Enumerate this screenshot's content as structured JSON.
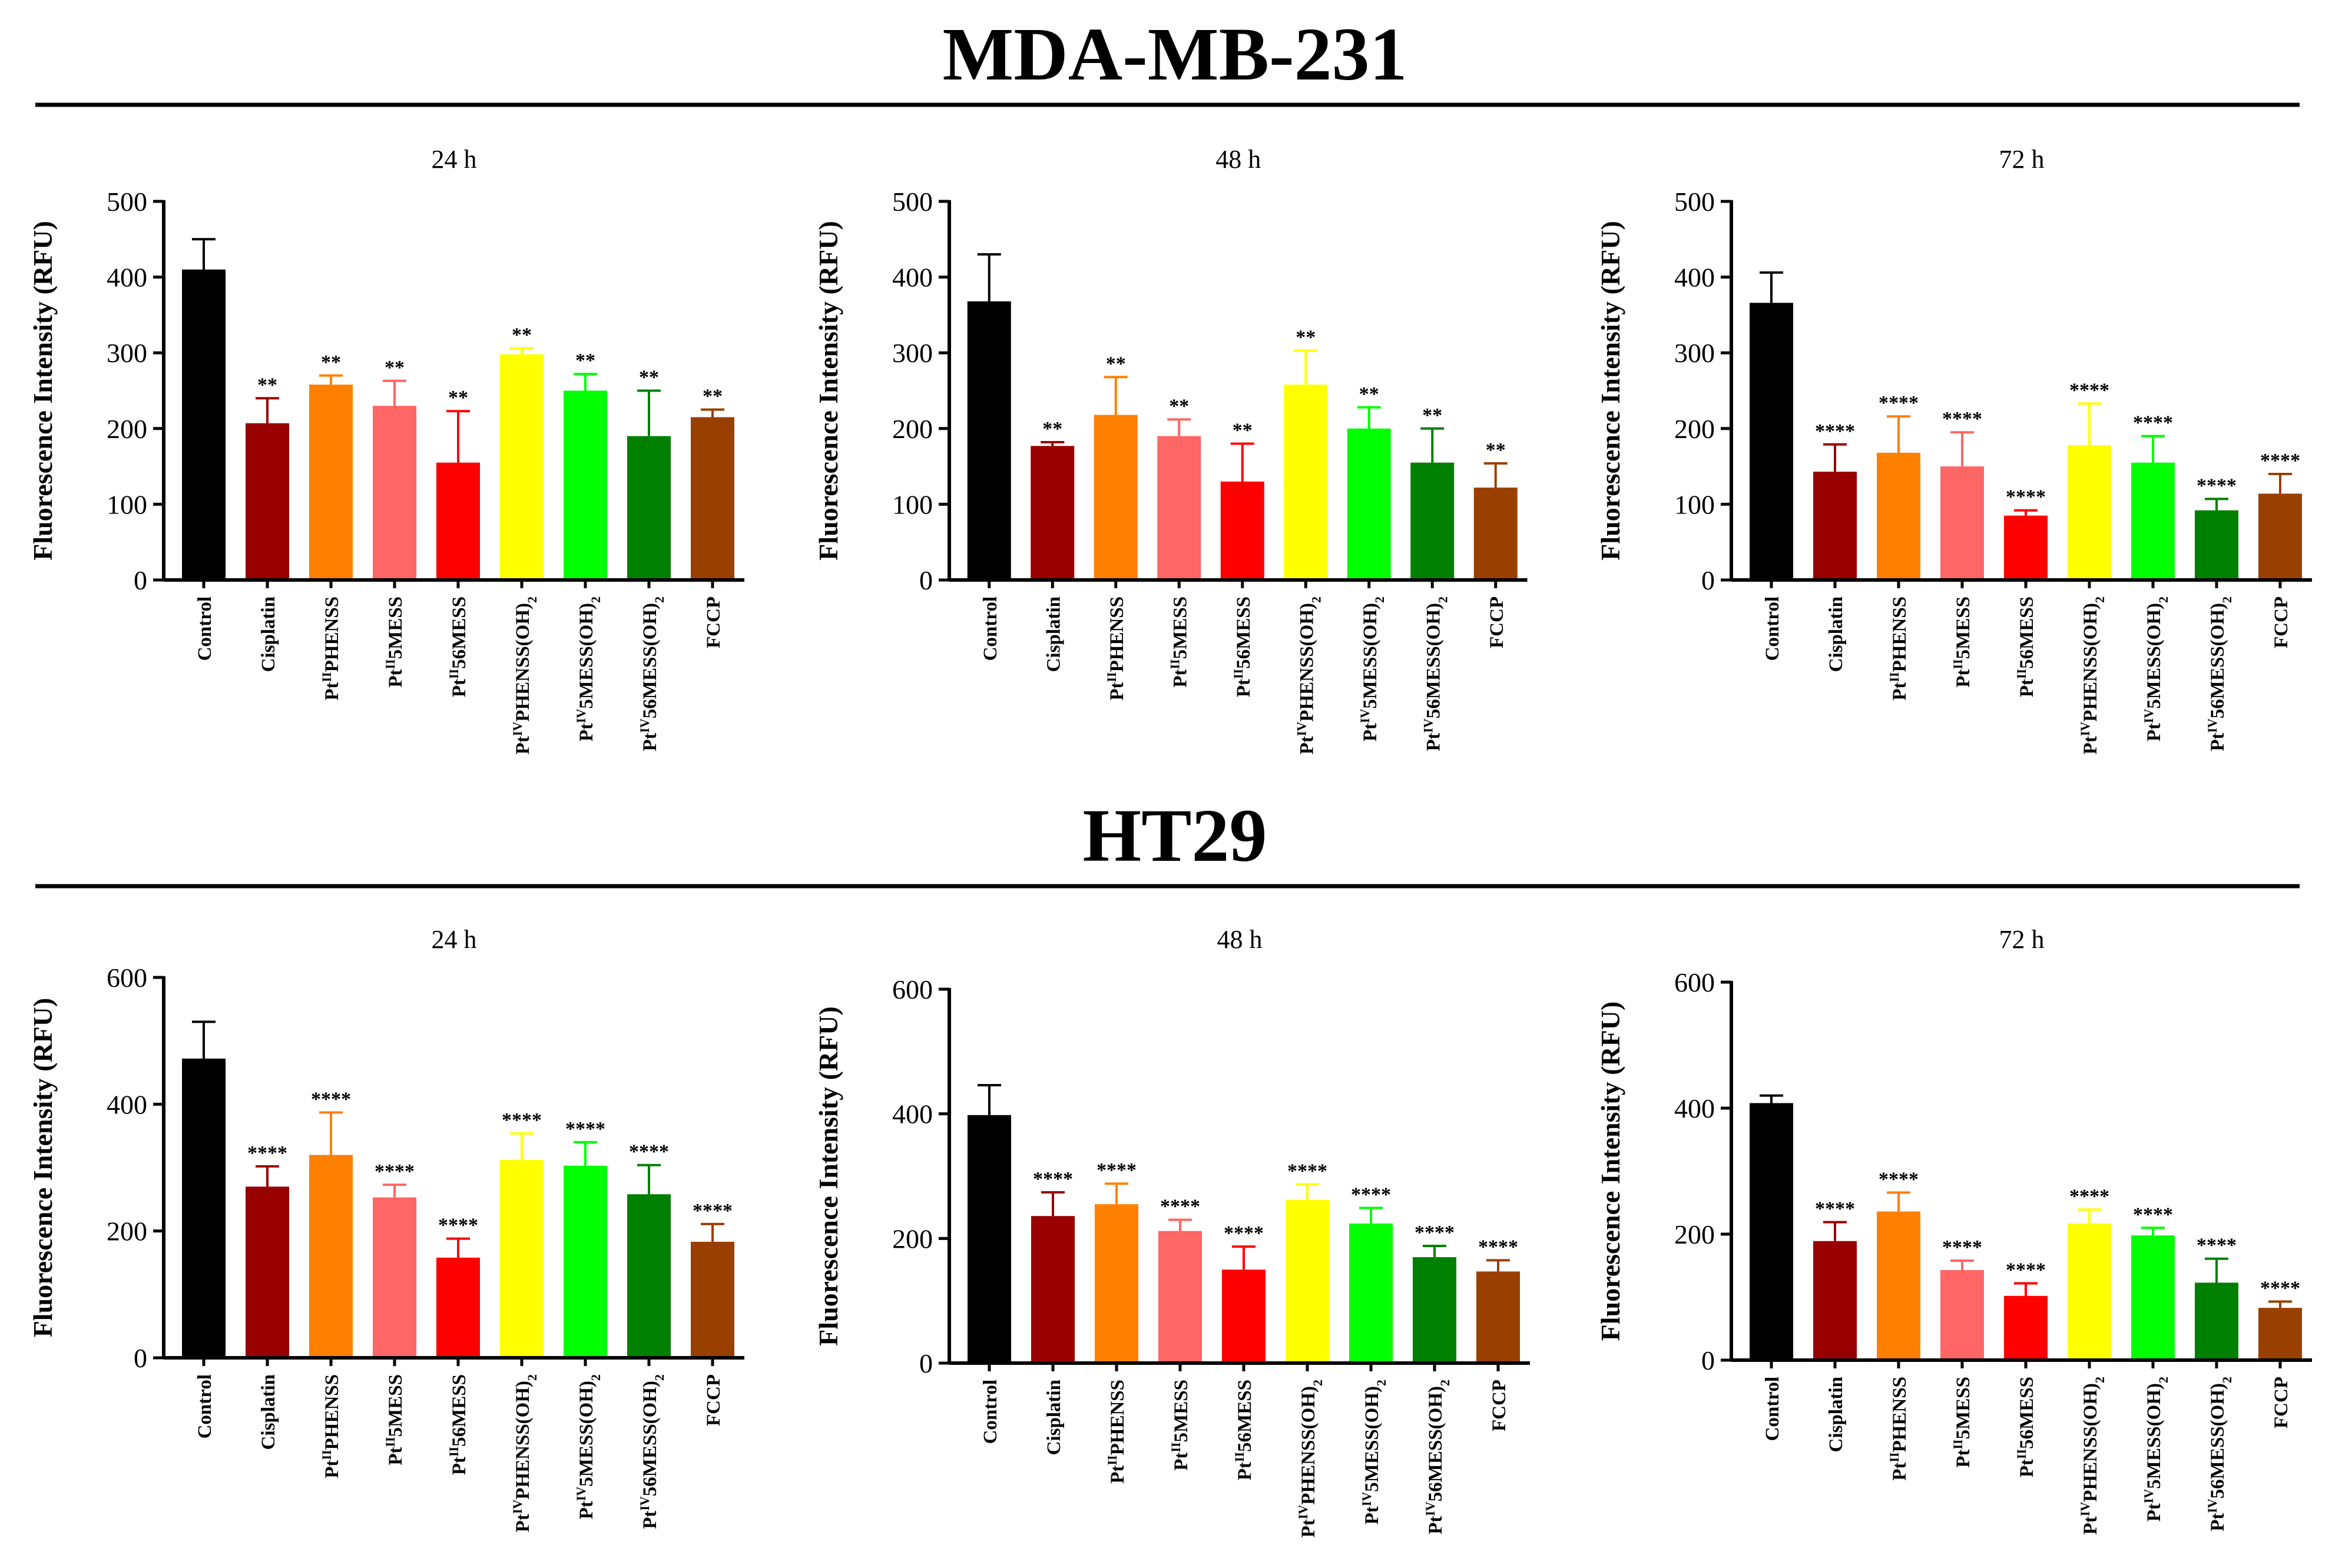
{
  "figure": {
    "sections": [
      {
        "title": "MDA-MB-231"
      },
      {
        "title": "HT29"
      }
    ]
  },
  "categories": [
    {
      "base": "Control"
    },
    {
      "base": "Cisplatin"
    },
    {
      "pre": "Pt",
      "sup": "II",
      "post": "PHENSS"
    },
    {
      "pre": "Pt",
      "sup": "II",
      "post": "5MESS"
    },
    {
      "pre": "Pt",
      "sup": "II",
      "post": "56MESS"
    },
    {
      "pre": "Pt",
      "sup": "IV",
      "post": "PHENSS(OH)",
      "sub": "2"
    },
    {
      "pre": "Pt",
      "sup": "IV",
      "post": "5MESS(OH)",
      "sub": "2"
    },
    {
      "pre": "Pt",
      "sup": "IV",
      "post": "56MESS(OH)",
      "sub": "2"
    },
    {
      "base": "FCCP"
    }
  ],
  "colors": [
    "#000000",
    "#990000",
    "#ff8000",
    "#ff6666",
    "#ff0000",
    "#ffff00",
    "#00ff00",
    "#008000",
    "#994000"
  ],
  "chart_data": [
    {
      "type": "bar",
      "section": "MDA-MB-231",
      "title": "24 h",
      "ylabel": "Fluorescence Intensity (RFU)",
      "ylim": [
        0,
        500
      ],
      "yticks": [
        0,
        100,
        200,
        300,
        400,
        500
      ],
      "values": [
        410,
        207,
        258,
        230,
        155,
        298,
        250,
        190,
        215
      ],
      "errors": [
        40,
        33,
        12,
        33,
        68,
        8,
        22,
        60,
        10
      ],
      "significance": [
        "",
        "**",
        "**",
        "**",
        "**",
        "**",
        "**",
        "**",
        "**"
      ]
    },
    {
      "type": "bar",
      "section": "MDA-MB-231",
      "title": "48 h",
      "ylabel": "Fluorescence Intensity (RFU)",
      "ylim": [
        0,
        500
      ],
      "yticks": [
        0,
        100,
        200,
        300,
        400,
        500
      ],
      "values": [
        368,
        177,
        218,
        190,
        130,
        258,
        200,
        155,
        122
      ],
      "errors": [
        62,
        5,
        50,
        22,
        50,
        45,
        28,
        45,
        32
      ],
      "significance": [
        "",
        "**",
        "**",
        "**",
        "**",
        "**",
        "**",
        "**",
        "**"
      ]
    },
    {
      "type": "bar",
      "section": "MDA-MB-231",
      "title": "72 h",
      "ylabel": "Fluorescence Intensity (RFU)",
      "ylim": [
        0,
        500
      ],
      "yticks": [
        0,
        100,
        200,
        300,
        400,
        500
      ],
      "values": [
        366,
        143,
        168,
        150,
        85,
        178,
        155,
        92,
        114
      ],
      "errors": [
        40,
        36,
        48,
        45,
        7,
        55,
        35,
        15,
        26
      ],
      "significance": [
        "",
        "****",
        "****",
        "****",
        "****",
        "****",
        "****",
        "****",
        "****"
      ]
    },
    {
      "type": "bar",
      "section": "HT29",
      "title": "24 h",
      "ylabel": "Fluorescence Intensity (RFU)",
      "ylim": [
        0,
        600
      ],
      "yticks": [
        0,
        200,
        400,
        600
      ],
      "values": [
        472,
        270,
        320,
        253,
        158,
        312,
        303,
        258,
        183
      ],
      "errors": [
        58,
        32,
        67,
        20,
        30,
        42,
        37,
        46,
        28
      ],
      "significance": [
        "",
        "****",
        "****",
        "****",
        "****",
        "****",
        "****",
        "****",
        "****"
      ]
    },
    {
      "type": "bar",
      "section": "HT29",
      "title": "48 h",
      "ylabel": "Fluorescence Intensity (RFU)",
      "ylim": [
        0,
        600
      ],
      "yticks": [
        0,
        200,
        400,
        600
      ],
      "values": [
        398,
        236,
        255,
        212,
        150,
        262,
        224,
        170,
        147
      ],
      "errors": [
        48,
        38,
        33,
        18,
        37,
        25,
        25,
        18,
        18
      ],
      "significance": [
        "",
        "****",
        "****",
        "****",
        "****",
        "****",
        "****",
        "****",
        "****"
      ]
    },
    {
      "type": "bar",
      "section": "HT29",
      "title": "72 h",
      "ylabel": "Fluorescence Intensity (RFU)",
      "ylim": [
        0,
        600
      ],
      "yticks": [
        0,
        200,
        400,
        600
      ],
      "values": [
        408,
        189,
        236,
        143,
        102,
        217,
        198,
        123,
        83
      ],
      "errors": [
        12,
        30,
        30,
        15,
        20,
        22,
        12,
        38,
        10
      ],
      "significance": [
        "",
        "****",
        "****",
        "****",
        "****",
        "****",
        "****",
        "****",
        "****"
      ]
    }
  ]
}
